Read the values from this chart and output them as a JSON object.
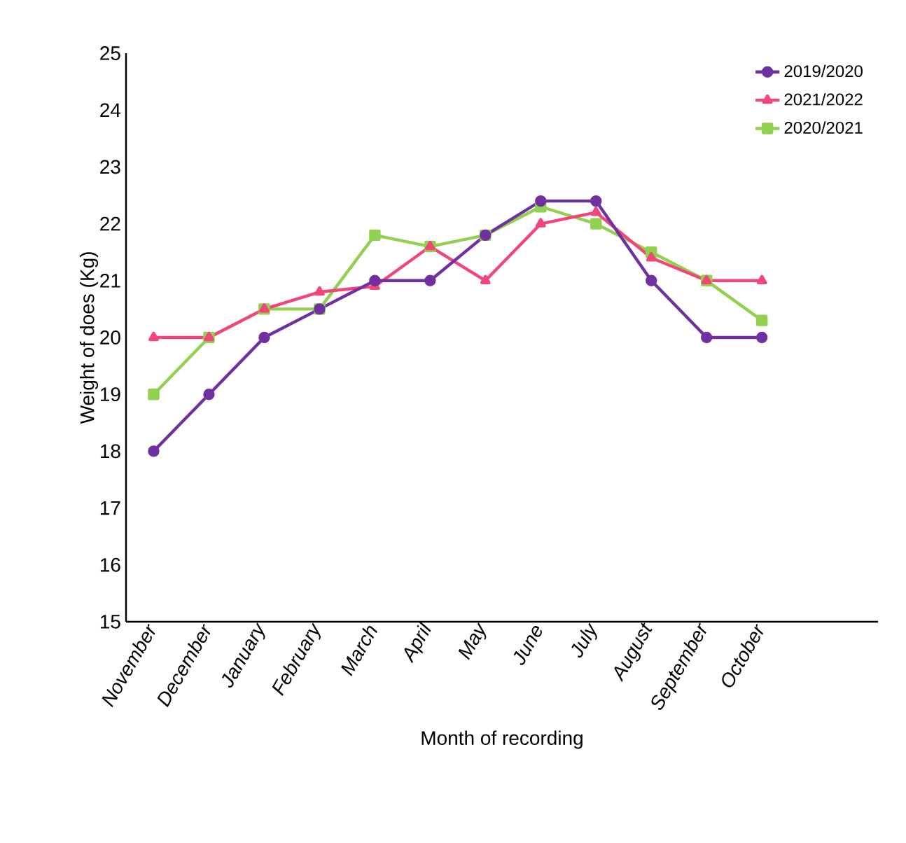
{
  "chart_data": {
    "type": "line",
    "xlabel": "Month of recording",
    "ylabel": "Weight of does (Kg)",
    "categories": [
      "November",
      "December",
      "January",
      "February",
      "March",
      "April",
      "May",
      "June",
      "July",
      "August",
      "September",
      "October"
    ],
    "series": [
      {
        "name": "2019/2020",
        "color": "#7030a0",
        "marker": "circle",
        "values": [
          18,
          19,
          20,
          20.5,
          21,
          21,
          21.8,
          22.4,
          22.4,
          21,
          20,
          20
        ]
      },
      {
        "name": "2021/2022",
        "color": "#f0467a",
        "marker": "triangle",
        "values": [
          20,
          20,
          20.5,
          20.8,
          20.9,
          21.6,
          21,
          22,
          22.2,
          21.4,
          21,
          21
        ]
      },
      {
        "name": "2020/2021",
        "color": "#92d050",
        "marker": "square",
        "values": [
          19,
          20,
          20.5,
          20.5,
          21.8,
          21.6,
          21.8,
          22.3,
          22,
          21.5,
          21,
          20.3
        ]
      }
    ],
    "ylim": [
      15,
      25
    ],
    "yticks": [
      15,
      16,
      17,
      18,
      19,
      20,
      21,
      22,
      23,
      24,
      25
    ],
    "grid": false,
    "legend": "top right",
    "line_style": "solid"
  }
}
